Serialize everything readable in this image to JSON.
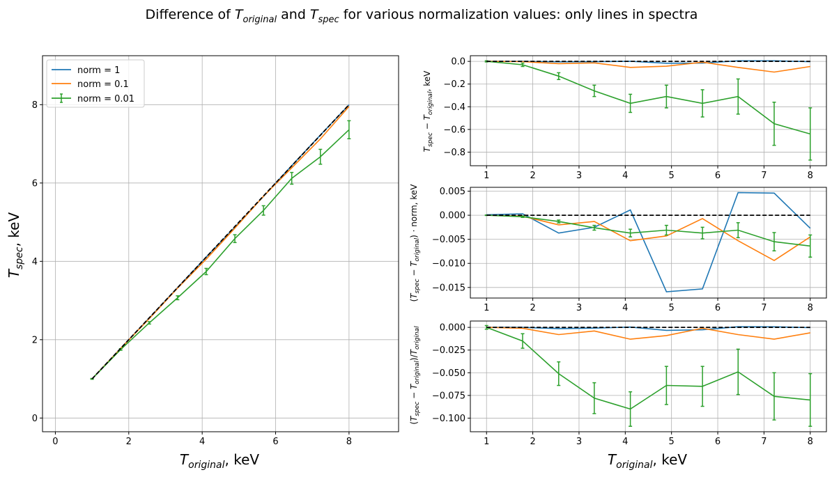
{
  "figure": {
    "suptitle": "Difference of T_original and T_spec for various normalization values: only lines in spectra"
  },
  "colors": {
    "norm_1": "#1f77b4",
    "norm_0_1": "#ff7f0e",
    "norm_0_01": "#2ca02c",
    "reference": "#000000",
    "grid": "#b0b0b0"
  },
  "chart_data": [
    {
      "id": "main",
      "type": "line",
      "xlabel": "T_original, keV",
      "ylabel": "T_spec, keV",
      "xlim": [
        -0.35,
        9.35
      ],
      "ylim": [
        -0.35,
        9.25
      ],
      "xticks": [
        0,
        2,
        4,
        6,
        8
      ],
      "yticks": [
        0,
        2,
        4,
        6,
        8
      ],
      "grid": true,
      "legend": "top-left",
      "x": [
        1.0,
        1.78,
        2.56,
        3.33,
        4.11,
        4.89,
        5.67,
        6.44,
        7.22,
        8.0
      ],
      "series": [
        {
          "name": "norm = 1",
          "color_key": "norm_1",
          "values": [
            1.0,
            1.78,
            2.556,
            3.331,
            4.111,
            4.874,
            5.655,
            6.445,
            7.225,
            7.997
          ]
        },
        {
          "name": "norm = 0.1",
          "color_key": "norm_0_1",
          "values": [
            1.0,
            1.778,
            2.54,
            3.317,
            4.057,
            4.847,
            5.663,
            6.387,
            7.126,
            7.955
          ]
        },
        {
          "name": "norm = 0.01",
          "color_key": "norm_0_01",
          "errorbars": true,
          "values": [
            1.0,
            1.75,
            2.43,
            3.07,
            3.74,
            4.58,
            5.3,
            6.12,
            6.67,
            7.36
          ],
          "errors": [
            0.01,
            0.02,
            0.03,
            0.05,
            0.08,
            0.1,
            0.12,
            0.15,
            0.19,
            0.23
          ]
        },
        {
          "name": "",
          "color_key": "reference",
          "dashed": true,
          "values": [
            1.0,
            1.78,
            2.56,
            3.33,
            4.11,
            4.89,
            5.67,
            6.44,
            7.22,
            8.0
          ]
        }
      ]
    },
    {
      "id": "top-right",
      "type": "line",
      "xlabel": "",
      "ylabel": "T_spec − T_original, keV",
      "xlim": [
        0.65,
        8.35
      ],
      "ylim": [
        -0.92,
        0.05
      ],
      "xticks": [
        1,
        2,
        3,
        4,
        5,
        6,
        7,
        8
      ],
      "yticks": [
        0.0,
        -0.2,
        -0.4,
        -0.6,
        -0.8
      ],
      "ytick_labels": [
        "0.0",
        "−0.2",
        "−0.4",
        "−0.6",
        "−0.8"
      ],
      "grid": true,
      "x": [
        1.0,
        1.78,
        2.56,
        3.33,
        4.11,
        4.89,
        5.67,
        6.44,
        7.22,
        8.0
      ],
      "series": [
        {
          "name": "norm = 1",
          "color_key": "norm_1",
          "values": [
            0.0,
            0.0,
            -0.004,
            -0.003,
            0.001,
            -0.016,
            -0.015,
            0.005,
            0.005,
            -0.003
          ]
        },
        {
          "name": "norm = 0.1",
          "color_key": "norm_0_1",
          "values": [
            0.0,
            -0.002,
            -0.02,
            -0.013,
            -0.053,
            -0.043,
            -0.007,
            -0.053,
            -0.094,
            -0.045
          ]
        },
        {
          "name": "norm = 0.01",
          "color_key": "norm_0_01",
          "errorbars": true,
          "values": [
            0.0,
            -0.03,
            -0.13,
            -0.26,
            -0.37,
            -0.31,
            -0.37,
            -0.31,
            -0.55,
            -0.64
          ],
          "errors": [
            0.005,
            0.015,
            0.03,
            0.05,
            0.08,
            0.1,
            0.12,
            0.155,
            0.19,
            0.23
          ]
        },
        {
          "name": "",
          "color_key": "reference",
          "dashed": true,
          "values": [
            0,
            0,
            0,
            0,
            0,
            0,
            0,
            0,
            0,
            0
          ]
        }
      ]
    },
    {
      "id": "middle-right",
      "type": "line",
      "xlabel": "",
      "ylabel": "(T_spec − T_original) · norm, keV",
      "xlim": [
        0.65,
        8.35
      ],
      "ylim": [
        -0.0172,
        0.0058
      ],
      "xticks": [
        1,
        2,
        3,
        4,
        5,
        6,
        7,
        8
      ],
      "yticks": [
        0.005,
        0.0,
        -0.005,
        -0.01,
        -0.015
      ],
      "ytick_labels": [
        "0.005",
        "0.000",
        "−0.005",
        "−0.010",
        "−0.015"
      ],
      "grid": true,
      "x": [
        1.0,
        1.78,
        2.56,
        3.33,
        4.11,
        4.89,
        5.67,
        6.44,
        7.22,
        8.0
      ],
      "series": [
        {
          "name": "norm = 1",
          "color_key": "norm_1",
          "values": [
            0.0001,
            0.0003,
            -0.0037,
            -0.0025,
            0.0011,
            -0.0159,
            -0.0153,
            0.0047,
            0.0046,
            -0.0027
          ]
        },
        {
          "name": "norm = 0.1",
          "color_key": "norm_0_1",
          "values": [
            0.0,
            -0.0002,
            -0.002,
            -0.0013,
            -0.0053,
            -0.0043,
            -0.0007,
            -0.0053,
            -0.0094,
            -0.0045
          ]
        },
        {
          "name": "norm = 0.01",
          "color_key": "norm_0_01",
          "errorbars": true,
          "values": [
            0.0,
            -0.0003,
            -0.0013,
            -0.0026,
            -0.0037,
            -0.0031,
            -0.0037,
            -0.0031,
            -0.0055,
            -0.0064
          ],
          "errors": [
            5e-05,
            0.00015,
            0.0003,
            0.0005,
            0.0008,
            0.001,
            0.0012,
            0.00155,
            0.0019,
            0.0023
          ]
        },
        {
          "name": "",
          "color_key": "reference",
          "dashed": true,
          "values": [
            0,
            0,
            0,
            0,
            0,
            0,
            0,
            0,
            0,
            0
          ]
        }
      ]
    },
    {
      "id": "bottom-right",
      "type": "line",
      "xlabel": "T_original, keV",
      "ylabel": "(T_spec − T_original)/T_original",
      "xlim": [
        0.65,
        8.35
      ],
      "ylim": [
        -0.115,
        0.007
      ],
      "xticks": [
        1,
        2,
        3,
        4,
        5,
        6,
        7,
        8
      ],
      "yticks": [
        0.0,
        -0.025,
        -0.05,
        -0.075,
        -0.1
      ],
      "ytick_labels": [
        "0.000",
        "−0.025",
        "−0.050",
        "−0.075",
        "−0.100"
      ],
      "grid": true,
      "x": [
        1.0,
        1.78,
        2.56,
        3.33,
        4.11,
        4.89,
        5.67,
        6.44,
        7.22,
        8.0
      ],
      "series": [
        {
          "name": "norm = 1",
          "color_key": "norm_1",
          "values": [
            0.0,
            0.0,
            -0.0014,
            -0.0008,
            0.0003,
            -0.0033,
            -0.0027,
            0.0007,
            0.0006,
            -0.0003
          ]
        },
        {
          "name": "norm = 0.1",
          "color_key": "norm_0_1",
          "values": [
            0.0,
            -0.001,
            -0.008,
            -0.004,
            -0.013,
            -0.009,
            -0.001,
            -0.008,
            -0.013,
            -0.006
          ]
        },
        {
          "name": "norm = 0.01",
          "color_key": "norm_0_01",
          "errorbars": true,
          "values": [
            0.0,
            -0.015,
            -0.051,
            -0.078,
            -0.09,
            -0.064,
            -0.065,
            -0.049,
            -0.076,
            -0.08
          ],
          "errors": [
            0.002,
            0.008,
            0.013,
            0.017,
            0.019,
            0.021,
            0.022,
            0.025,
            0.026,
            0.029
          ]
        },
        {
          "name": "",
          "color_key": "reference",
          "dashed": true,
          "values": [
            0,
            0,
            0,
            0,
            0,
            0,
            0,
            0,
            0,
            0
          ]
        }
      ]
    }
  ]
}
